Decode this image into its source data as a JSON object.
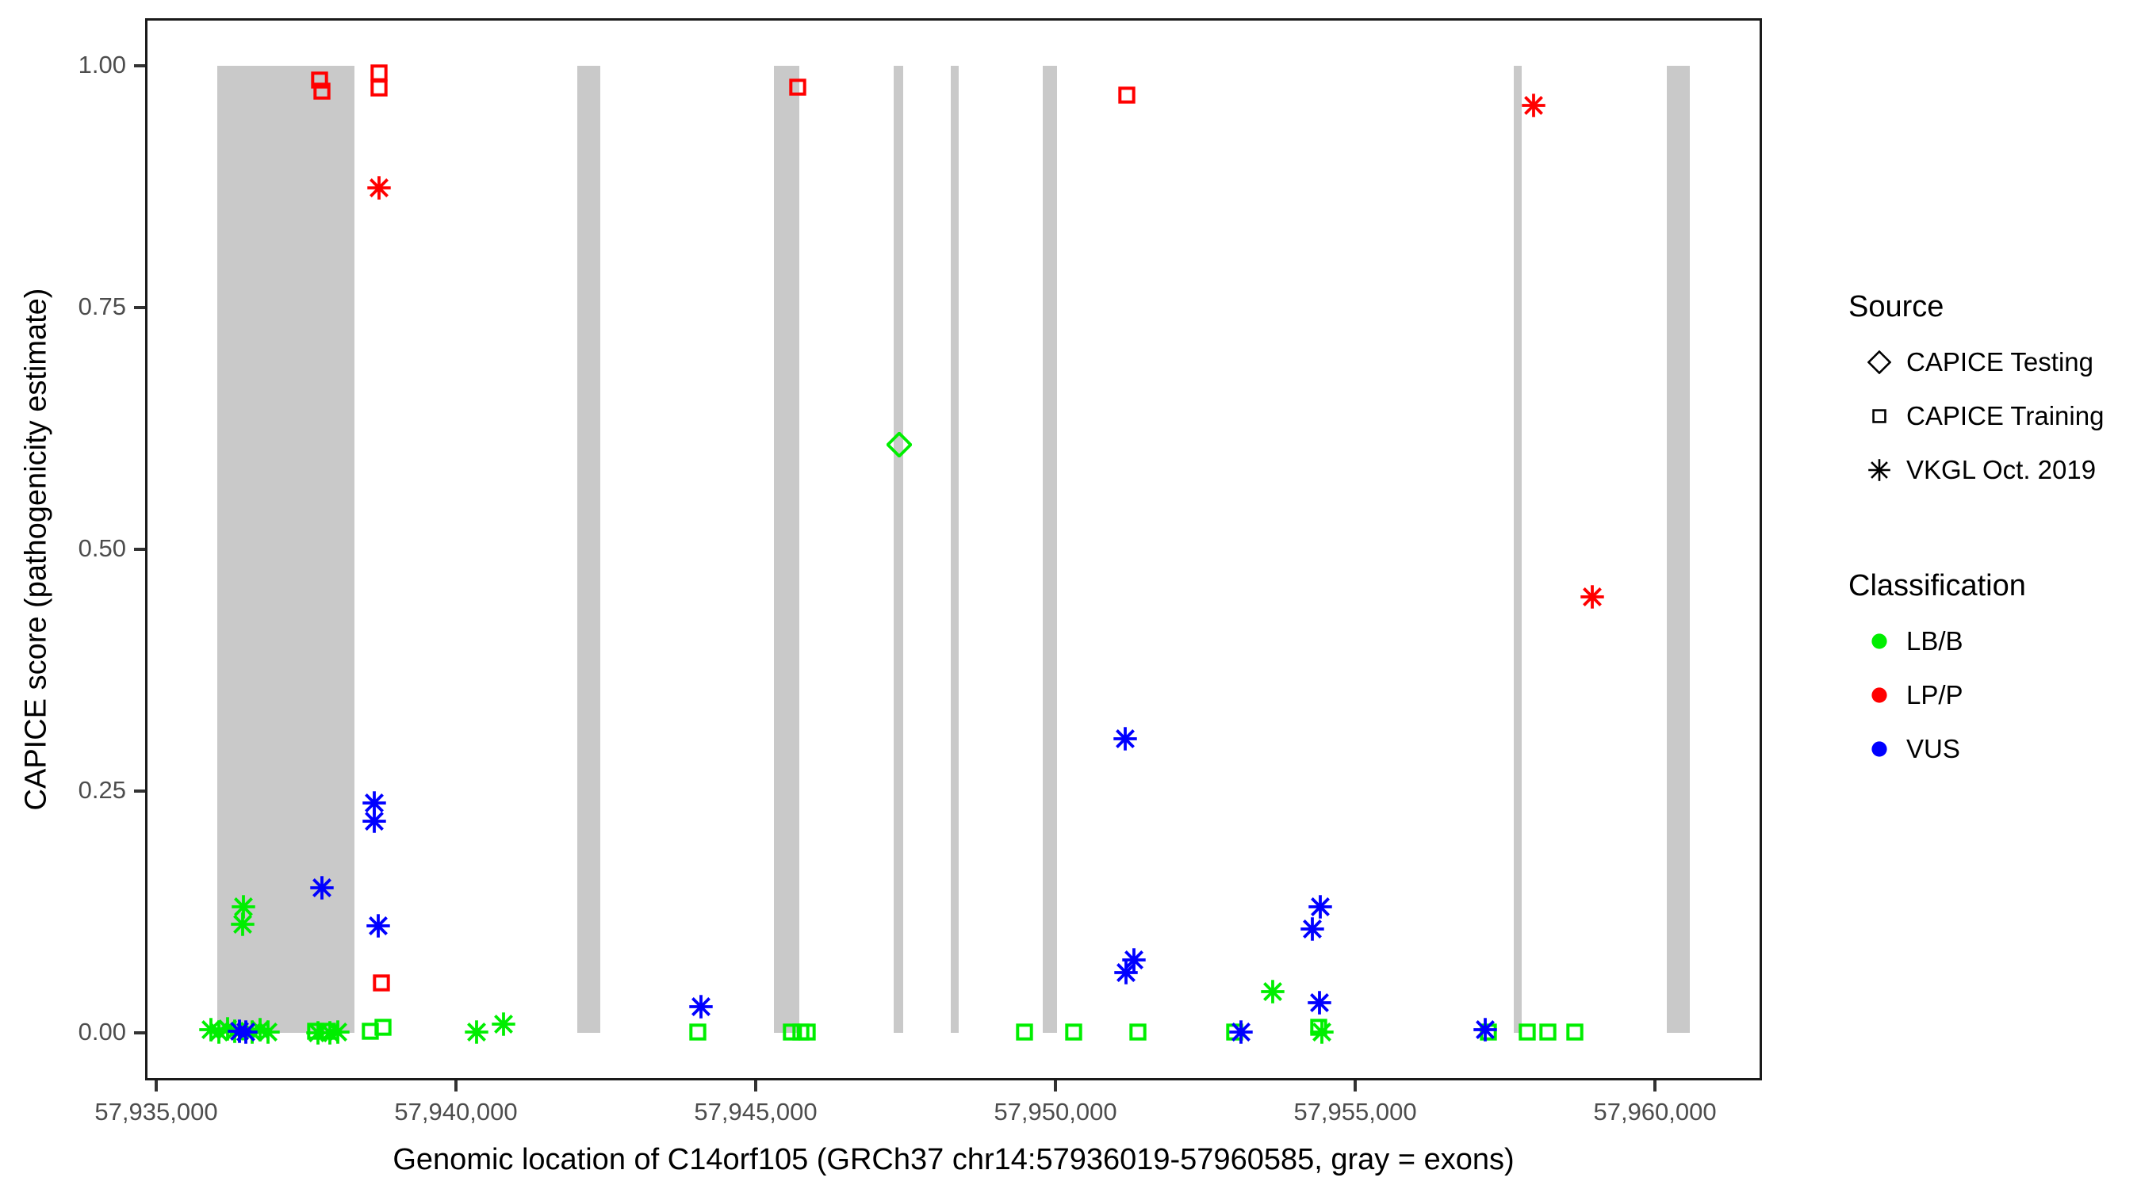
{
  "figure": {
    "x_axis_title": "Genomic location of C14orf105 (GRCh37 chr14:57936019-57960585, gray = exons)",
    "y_axis_title": "CAPICE score (pathogenicity estimate)"
  },
  "legend": {
    "source_title": "Source",
    "source_items": [
      {
        "label": "CAPICE Testing",
        "shape": "diamond"
      },
      {
        "label": "CAPICE Training",
        "shape": "square"
      },
      {
        "label": "VKGL Oct. 2019",
        "shape": "asterisk"
      }
    ],
    "classification_title": "Classification",
    "classification_items": [
      {
        "label": "LB/B",
        "color": "#00EE00"
      },
      {
        "label": "LP/P",
        "color": "#FF0000"
      },
      {
        "label": "VUS",
        "color": "#0000FF"
      }
    ]
  },
  "chart_data": {
    "type": "scatter",
    "title": "",
    "xlabel": "Genomic location of C14orf105 (GRCh37 chr14:57936019-57960585, gray = exons)",
    "ylabel": "CAPICE score (pathogenicity estimate)",
    "xlim": [
      57934815,
      57961785
    ],
    "ylim": [
      -0.0492,
      1.0492
    ],
    "grid": "off",
    "legend_position": "right",
    "x_ticks": [
      {
        "value": 57935000,
        "label": "57,935,000"
      },
      {
        "value": 57940000,
        "label": "57,940,000"
      },
      {
        "value": 57945000,
        "label": "57,945,000"
      },
      {
        "value": 57950000,
        "label": "57,950,000"
      },
      {
        "value": 57955000,
        "label": "57,955,000"
      },
      {
        "value": 57960000,
        "label": "57,960,000"
      }
    ],
    "y_ticks": [
      {
        "value": 1.0,
        "label": "1.00"
      },
      {
        "value": 0.75,
        "label": "0.75"
      },
      {
        "value": 0.5,
        "label": "0.50"
      },
      {
        "value": 0.25,
        "label": "0.25"
      },
      {
        "value": 0.0,
        "label": "0.00"
      }
    ],
    "exon_color": "#c9c9c9",
    "exons_gray_bands": [
      [
        57936019,
        57938307
      ],
      [
        57942024,
        57942407
      ],
      [
        57945304,
        57945728
      ],
      [
        57947302,
        57947460
      ],
      [
        57948254,
        57948386
      ],
      [
        57949788,
        57950026
      ],
      [
        57957646,
        57957778
      ],
      [
        57960198,
        57960582
      ]
    ],
    "colors": {
      "LB/B": "#00EE00",
      "LP/P": "#FF0000",
      "VUS": "#0000FF"
    },
    "shapes": {
      "CAPICE Testing": "diamond",
      "CAPICE Training": "square",
      "VKGL Oct. 2019": "asterisk"
    },
    "points": [
      {
        "bp": 57935915,
        "score": 0.003,
        "source": "VKGL Oct. 2019",
        "classification": "LB/B"
      },
      {
        "bp": 57936045,
        "score": 0.001,
        "source": "VKGL Oct. 2019",
        "classification": "LB/B"
      },
      {
        "bp": 57936190,
        "score": 0.004,
        "source": "VKGL Oct. 2019",
        "classification": "LB/B"
      },
      {
        "bp": 57936310,
        "score": 0.002,
        "source": "VKGL Oct. 2019",
        "classification": "LB/B"
      },
      {
        "bp": 57936600,
        "score": 0.001,
        "source": "VKGL Oct. 2019",
        "classification": "LB/B"
      },
      {
        "bp": 57936730,
        "score": 0.003,
        "source": "VKGL Oct. 2019",
        "classification": "LB/B"
      },
      {
        "bp": 57936865,
        "score": 0.001,
        "source": "VKGL Oct. 2019",
        "classification": "LB/B"
      },
      {
        "bp": 57936385,
        "score": 0.002,
        "source": "VKGL Oct. 2019",
        "classification": "VUS"
      },
      {
        "bp": 57936490,
        "score": 0.001,
        "source": "VKGL Oct. 2019",
        "classification": "VUS"
      },
      {
        "bp": 57936455,
        "score": 0.13,
        "source": "VKGL Oct. 2019",
        "classification": "LB/B"
      },
      {
        "bp": 57936440,
        "score": 0.112,
        "source": "VKGL Oct. 2019",
        "classification": "LB/B"
      },
      {
        "bp": 57937660,
        "score": 0.002,
        "source": "CAPICE Training",
        "classification": "LB/B"
      },
      {
        "bp": 57937700,
        "score": 0.0,
        "source": "VKGL Oct. 2019",
        "classification": "LB/B"
      },
      {
        "bp": 57937855,
        "score": 0.002,
        "source": "CAPICE Training",
        "classification": "LB/B"
      },
      {
        "bp": 57937900,
        "score": 0.0,
        "source": "VKGL Oct. 2019",
        "classification": "LB/B"
      },
      {
        "bp": 57938030,
        "score": 0.001,
        "source": "VKGL Oct. 2019",
        "classification": "LB/B"
      },
      {
        "bp": 57938570,
        "score": 0.002,
        "source": "CAPICE Training",
        "classification": "LB/B"
      },
      {
        "bp": 57938785,
        "score": 0.006,
        "source": "CAPICE Training",
        "classification": "LB/B"
      },
      {
        "bp": 57937765,
        "score": 0.15,
        "source": "VKGL Oct. 2019",
        "classification": "VUS"
      },
      {
        "bp": 57938640,
        "score": 0.238,
        "source": "VKGL Oct. 2019",
        "classification": "VUS"
      },
      {
        "bp": 57938640,
        "score": 0.219,
        "source": "VKGL Oct. 2019",
        "classification": "VUS"
      },
      {
        "bp": 57938705,
        "score": 0.111,
        "source": "VKGL Oct. 2019",
        "classification": "VUS"
      },
      {
        "bp": 57938755,
        "score": 0.052,
        "source": "CAPICE Training",
        "classification": "LP/P"
      },
      {
        "bp": 57937725,
        "score": 0.985,
        "source": "CAPICE Training",
        "classification": "LP/P"
      },
      {
        "bp": 57937765,
        "score": 0.974,
        "source": "CAPICE Training",
        "classification": "LP/P"
      },
      {
        "bp": 57938715,
        "score": 0.993,
        "source": "CAPICE Training",
        "classification": "LP/P"
      },
      {
        "bp": 57938715,
        "score": 0.977,
        "source": "CAPICE Training",
        "classification": "LP/P"
      },
      {
        "bp": 57938715,
        "score": 0.874,
        "source": "VKGL Oct. 2019",
        "classification": "LP/P"
      },
      {
        "bp": 57940345,
        "score": 0.001,
        "source": "VKGL Oct. 2019",
        "classification": "LB/B"
      },
      {
        "bp": 57940795,
        "score": 0.009,
        "source": "VKGL Oct. 2019",
        "classification": "LB/B"
      },
      {
        "bp": 57944035,
        "score": 0.001,
        "source": "CAPICE Training",
        "classification": "LB/B"
      },
      {
        "bp": 57944090,
        "score": 0.027,
        "source": "VKGL Oct. 2019",
        "classification": "VUS"
      },
      {
        "bp": 57945595,
        "score": 0.001,
        "source": "CAPICE Training",
        "classification": "LB/B"
      },
      {
        "bp": 57945755,
        "score": 0.001,
        "source": "CAPICE Training",
        "classification": "LB/B"
      },
      {
        "bp": 57945860,
        "score": 0.001,
        "source": "CAPICE Training",
        "classification": "LB/B"
      },
      {
        "bp": 57945700,
        "score": 0.978,
        "source": "CAPICE Training",
        "classification": "LP/P"
      },
      {
        "bp": 57947400,
        "score": 0.608,
        "source": "CAPICE Testing",
        "classification": "LB/B"
      },
      {
        "bp": 57949485,
        "score": 0.001,
        "source": "CAPICE Training",
        "classification": "LB/B"
      },
      {
        "bp": 57950305,
        "score": 0.001,
        "source": "CAPICE Training",
        "classification": "LB/B"
      },
      {
        "bp": 57951375,
        "score": 0.001,
        "source": "CAPICE Training",
        "classification": "LB/B"
      },
      {
        "bp": 57951190,
        "score": 0.97,
        "source": "CAPICE Training",
        "classification": "LP/P"
      },
      {
        "bp": 57951165,
        "score": 0.304,
        "source": "VKGL Oct. 2019",
        "classification": "VUS"
      },
      {
        "bp": 57951310,
        "score": 0.075,
        "source": "VKGL Oct. 2019",
        "classification": "VUS"
      },
      {
        "bp": 57951175,
        "score": 0.062,
        "source": "VKGL Oct. 2019",
        "classification": "VUS"
      },
      {
        "bp": 57952990,
        "score": 0.001,
        "source": "CAPICE Training",
        "classification": "LB/B"
      },
      {
        "bp": 57953095,
        "score": 0.001,
        "source": "VKGL Oct. 2019",
        "classification": "VUS"
      },
      {
        "bp": 57953625,
        "score": 0.043,
        "source": "VKGL Oct. 2019",
        "classification": "LB/B"
      },
      {
        "bp": 57954390,
        "score": 0.006,
        "source": "CAPICE Training",
        "classification": "LB/B"
      },
      {
        "bp": 57954445,
        "score": 0.001,
        "source": "VKGL Oct. 2019",
        "classification": "LB/B"
      },
      {
        "bp": 57954420,
        "score": 0.13,
        "source": "VKGL Oct. 2019",
        "classification": "VUS"
      },
      {
        "bp": 57954285,
        "score": 0.107,
        "source": "VKGL Oct. 2019",
        "classification": "VUS"
      },
      {
        "bp": 57954405,
        "score": 0.031,
        "source": "VKGL Oct. 2019",
        "classification": "VUS"
      },
      {
        "bp": 57957225,
        "score": 0.001,
        "source": "CAPICE Training",
        "classification": "LB/B"
      },
      {
        "bp": 57957170,
        "score": 0.003,
        "source": "VKGL Oct. 2019",
        "classification": "VUS"
      },
      {
        "bp": 57957870,
        "score": 0.001,
        "source": "CAPICE Training",
        "classification": "LB/B"
      },
      {
        "bp": 57958215,
        "score": 0.001,
        "source": "CAPICE Training",
        "classification": "LB/B"
      },
      {
        "bp": 57958665,
        "score": 0.001,
        "source": "CAPICE Training",
        "classification": "LB/B"
      },
      {
        "bp": 57957975,
        "score": 0.959,
        "source": "VKGL Oct. 2019",
        "classification": "LP/P"
      },
      {
        "bp": 57958950,
        "score": 0.451,
        "source": "VKGL Oct. 2019",
        "classification": "LP/P"
      }
    ]
  }
}
